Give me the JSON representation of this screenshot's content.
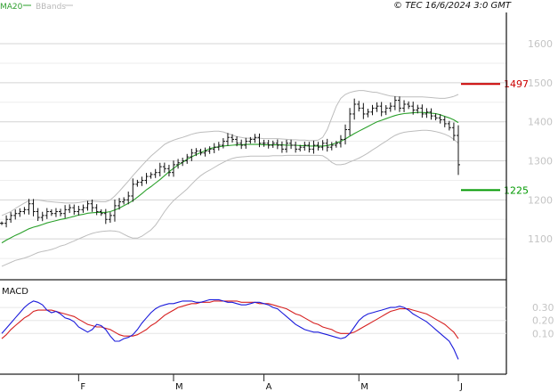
{
  "header": {
    "legend_ma": "MA20",
    "legend_bb": "BBands",
    "copyright": "© TEC 16/6/2024 3:0 GMT"
  },
  "colors": {
    "bars": "#111111",
    "ma20": "#2aa02a",
    "bbands": "#bdbdbd",
    "grid": "#d4d4d4",
    "resistance": "#cc0000",
    "support": "#009900",
    "macd": "#1a1adb",
    "signal": "#d62020",
    "frame": "#222222"
  },
  "chart_data": [
    {
      "type": "line",
      "subtype": "ohlc-bars",
      "title": "",
      "xlabel": "",
      "ylabel": "",
      "legend": [
        "MA20",
        "BBands"
      ],
      "legend_placement": "top-left",
      "grid": true,
      "ylim": [
        1000,
        1680
      ],
      "yticks": [
        1100,
        1200,
        1300,
        1400,
        1500,
        1600
      ],
      "ytick_labels": [
        "1100",
        "1200",
        "1300",
        "1400",
        "1500",
        "1600"
      ],
      "x_month_labels": [
        {
          "label": "F",
          "index": 17
        },
        {
          "label": "M",
          "index": 38
        },
        {
          "label": "A",
          "index": 58
        },
        {
          "label": "M",
          "index": 79
        },
        {
          "label": "J",
          "index": 101
        }
      ],
      "levels": [
        {
          "label": "1497",
          "value": 1497,
          "kind": "resistance"
        },
        {
          "label": "1225",
          "value": 1225,
          "kind": "support"
        }
      ],
      "series": [
        {
          "name": "Close",
          "values": [
            1140,
            1150,
            1160,
            1165,
            1170,
            1175,
            1190,
            1170,
            1155,
            1160,
            1170,
            1165,
            1170,
            1165,
            1175,
            1180,
            1170,
            1175,
            1180,
            1190,
            1180,
            1170,
            1165,
            1150,
            1160,
            1185,
            1195,
            1200,
            1210,
            1240,
            1245,
            1250,
            1260,
            1265,
            1270,
            1285,
            1280,
            1270,
            1290,
            1295,
            1300,
            1310,
            1320,
            1325,
            1320,
            1325,
            1330,
            1335,
            1340,
            1350,
            1360,
            1355,
            1345,
            1340,
            1350,
            1355,
            1360,
            1345,
            1345,
            1340,
            1345,
            1340,
            1330,
            1345,
            1340,
            1330,
            1335,
            1340,
            1330,
            1340,
            1335,
            1345,
            1335,
            1340,
            1345,
            1355,
            1380,
            1420,
            1445,
            1435,
            1420,
            1425,
            1435,
            1440,
            1425,
            1435,
            1440,
            1455,
            1435,
            1445,
            1440,
            1430,
            1435,
            1420,
            1425,
            1415,
            1410,
            1405,
            1395,
            1385,
            1365,
            1290
          ]
        },
        {
          "name": "MA20",
          "values": [
            1090,
            1097,
            1103,
            1109,
            1114,
            1120,
            1126,
            1130,
            1133,
            1137,
            1141,
            1144,
            1147,
            1150,
            1152,
            1155,
            1158,
            1161,
            1163,
            1166,
            1167,
            1168,
            1168,
            1168,
            1170,
            1174,
            1179,
            1185,
            1191,
            1198,
            1207,
            1216,
            1226,
            1234,
            1243,
            1252,
            1262,
            1272,
            1281,
            1289,
            1296,
            1304,
            1310,
            1316,
            1321,
            1326,
            1331,
            1334,
            1336,
            1338,
            1339,
            1340,
            1341,
            1341,
            1342,
            1342,
            1342,
            1342,
            1341,
            1341,
            1341,
            1341,
            1341,
            1340,
            1340,
            1340,
            1339,
            1339,
            1338,
            1338,
            1338,
            1338,
            1339,
            1342,
            1346,
            1350,
            1356,
            1363,
            1370,
            1376,
            1382,
            1388,
            1394,
            1400,
            1404,
            1408,
            1412,
            1416,
            1419,
            1421,
            1422,
            1423,
            1424,
            1424,
            1423,
            1422,
            1421,
            1418,
            1414,
            1410,
            1405,
            1398
          ]
        },
        {
          "name": "BB upper",
          "values": [
            1160,
            1165,
            1170,
            1178,
            1185,
            1192,
            1198,
            1200,
            1200,
            1198,
            1196,
            1195,
            1194,
            1193,
            1192,
            1192,
            1192,
            1193,
            1195,
            1197,
            1197,
            1196,
            1195,
            1195,
            1200,
            1210,
            1222,
            1235,
            1248,
            1262,
            1275,
            1288,
            1300,
            1312,
            1322,
            1332,
            1342,
            1348,
            1353,
            1357,
            1360,
            1364,
            1368,
            1371,
            1373,
            1374,
            1375,
            1376,
            1376,
            1374,
            1370,
            1366,
            1362,
            1360,
            1358,
            1358,
            1358,
            1358,
            1357,
            1357,
            1357,
            1357,
            1356,
            1355,
            1354,
            1354,
            1353,
            1353,
            1352,
            1352,
            1353,
            1360,
            1380,
            1410,
            1440,
            1460,
            1470,
            1475,
            1478,
            1480,
            1480,
            1478,
            1476,
            1475,
            1472,
            1469,
            1466,
            1465,
            1464,
            1464,
            1464,
            1464,
            1464,
            1464,
            1463,
            1462,
            1461,
            1460,
            1460,
            1462,
            1465,
            1470
          ]
        },
        {
          "name": "BB lower",
          "values": [
            1030,
            1035,
            1040,
            1045,
            1048,
            1051,
            1055,
            1060,
            1065,
            1068,
            1070,
            1073,
            1077,
            1082,
            1085,
            1090,
            1095,
            1100,
            1105,
            1110,
            1114,
            1117,
            1119,
            1120,
            1121,
            1120,
            1118,
            1112,
            1106,
            1102,
            1102,
            1107,
            1115,
            1123,
            1135,
            1152,
            1170,
            1185,
            1198,
            1208,
            1218,
            1228,
            1240,
            1252,
            1262,
            1270,
            1276,
            1283,
            1290,
            1296,
            1302,
            1306,
            1309,
            1310,
            1311,
            1312,
            1312,
            1312,
            1312,
            1312,
            1313,
            1313,
            1313,
            1314,
            1314,
            1314,
            1314,
            1314,
            1314,
            1314,
            1314,
            1313,
            1306,
            1296,
            1290,
            1290,
            1292,
            1297,
            1302,
            1307,
            1313,
            1320,
            1328,
            1335,
            1343,
            1350,
            1358,
            1365,
            1370,
            1373,
            1375,
            1376,
            1377,
            1378,
            1378,
            1377,
            1375,
            1372,
            1368,
            1363,
            1355,
            1345
          ]
        }
      ]
    },
    {
      "type": "line",
      "title": "MACD",
      "xlabel": "",
      "ylabel": "",
      "grid": true,
      "ylim": [
        -20,
        50
      ],
      "yticks": [
        10,
        20,
        30
      ],
      "ytick_labels": [
        "0.10",
        "0.20",
        "0.30"
      ],
      "series": [
        {
          "name": "MACD",
          "values": [
            10,
            14,
            18,
            22,
            26,
            30,
            33,
            35,
            34,
            32,
            28,
            26,
            27,
            25,
            22,
            21,
            19,
            15,
            13,
            11,
            13,
            17,
            16,
            13,
            8,
            4,
            4,
            6,
            7,
            9,
            13,
            18,
            22,
            26,
            29,
            31,
            32,
            33,
            33,
            34,
            35,
            35,
            35,
            34,
            34,
            35,
            36,
            36,
            36,
            35,
            34,
            34,
            33,
            32,
            32,
            33,
            34,
            34,
            33,
            32,
            30,
            29,
            26,
            23,
            20,
            17,
            15,
            13,
            12,
            11,
            11,
            10,
            9,
            8,
            7,
            6,
            7,
            10,
            15,
            20,
            23,
            25,
            26,
            27,
            28,
            29,
            30,
            30,
            31,
            30,
            28,
            25,
            23,
            21,
            19,
            16,
            13,
            10,
            7,
            4,
            -2,
            -10
          ]
        },
        {
          "name": "Signal",
          "values": [
            6,
            9,
            13,
            16,
            19,
            22,
            24,
            27,
            28,
            28,
            28,
            28,
            27,
            26,
            25,
            24,
            23,
            21,
            19,
            17,
            16,
            15,
            15,
            14,
            13,
            11,
            9,
            8,
            8,
            8,
            9,
            11,
            13,
            16,
            18,
            21,
            24,
            26,
            28,
            30,
            31,
            32,
            33,
            33,
            34,
            34,
            34,
            35,
            35,
            35,
            35,
            35,
            35,
            34,
            34,
            34,
            34,
            33,
            33,
            33,
            32,
            31,
            30,
            29,
            27,
            25,
            24,
            22,
            20,
            18,
            17,
            15,
            14,
            13,
            11,
            10,
            10,
            10,
            11,
            13,
            15,
            17,
            19,
            21,
            23,
            25,
            27,
            28,
            29,
            29,
            29,
            28,
            27,
            26,
            25,
            23,
            21,
            19,
            17,
            14,
            11,
            6
          ]
        }
      ]
    }
  ]
}
